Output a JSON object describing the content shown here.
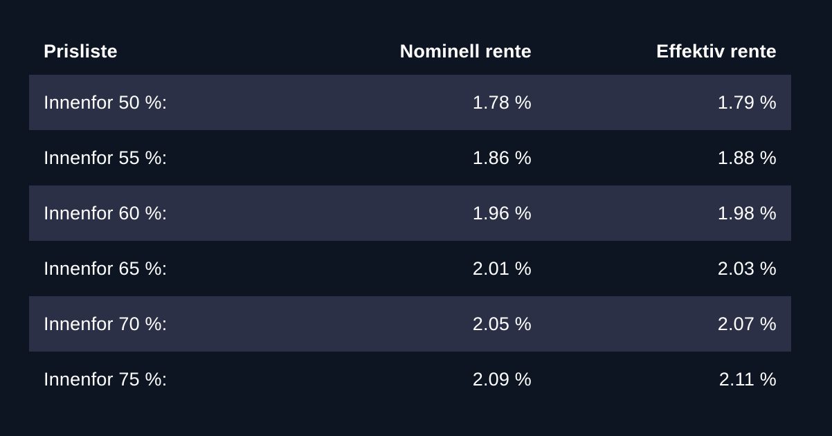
{
  "colors": {
    "background": "#0d1422",
    "stripe": "#2b3046",
    "text": "#ffffff"
  },
  "table": {
    "header": {
      "title": "Prisliste",
      "nominal_label": "Nominell rente",
      "effective_label": "Effektiv rente"
    },
    "rows": [
      {
        "label": "Innenfor 50 %:",
        "nominal": "1.78 %",
        "effective": "1.79 %",
        "striped": true
      },
      {
        "label": "Innenfor 55 %:",
        "nominal": "1.86 %",
        "effective": "1.88 %",
        "striped": false
      },
      {
        "label": "Innenfor 60 %:",
        "nominal": "1.96 %",
        "effective": "1.98 %",
        "striped": true
      },
      {
        "label": "Innenfor 65 %:",
        "nominal": "2.01 %",
        "effective": "2.03 %",
        "striped": false
      },
      {
        "label": "Innenfor 70 %:",
        "nominal": "2.05 %",
        "effective": "2.07 %",
        "striped": true
      },
      {
        "label": "Innenfor 75 %:",
        "nominal": "2.09 %",
        "effective": "2.11 %",
        "striped": false
      }
    ]
  }
}
